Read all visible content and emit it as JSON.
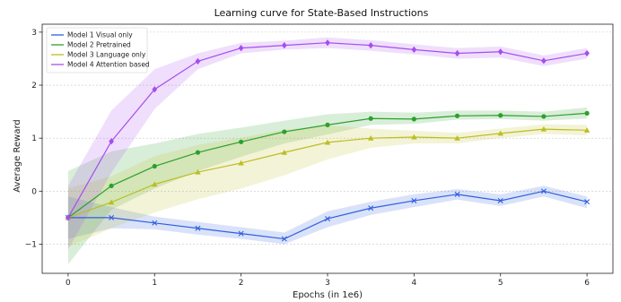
{
  "chart_data": {
    "type": "line",
    "title": "Learning curve for State-Based Instructions",
    "xlabel": "Epochs (in 1e6)",
    "ylabel": "Average Reward",
    "xlim": [
      -0.3,
      6.3
    ],
    "ylim": [
      -1.55,
      3.15
    ],
    "xticks": [
      0,
      1,
      2,
      3,
      4,
      5,
      6
    ],
    "yticks": [
      -1,
      0,
      1,
      2,
      3
    ],
    "grid": "horizontal-dashed",
    "legend_position": "top-left",
    "x": [
      0,
      0.5,
      1,
      1.5,
      2,
      2.5,
      3,
      3.5,
      4,
      4.5,
      5,
      5.5,
      6
    ],
    "series": [
      {
        "name": "Model 1 Visual only",
        "color": "#2f5fe0",
        "marker": "x",
        "values": [
          -0.5,
          -0.5,
          -0.6,
          -0.7,
          -0.8,
          -0.9,
          -0.52,
          -0.32,
          -0.18,
          -0.06,
          -0.18,
          0.0,
          -0.2
        ],
        "lower": [
          -0.9,
          -0.7,
          -0.72,
          -0.82,
          -0.9,
          -1.0,
          -0.68,
          -0.45,
          -0.3,
          -0.16,
          -0.28,
          -0.1,
          -0.32
        ],
        "upper": [
          -0.1,
          -0.3,
          -0.48,
          -0.58,
          -0.68,
          -0.78,
          -0.38,
          -0.2,
          -0.06,
          0.04,
          -0.06,
          0.1,
          -0.1
        ]
      },
      {
        "name": "Model 2 Pretrained",
        "color": "#2ca02c",
        "marker": "circle",
        "values": [
          -0.5,
          0.1,
          0.47,
          0.73,
          0.93,
          1.12,
          1.25,
          1.37,
          1.36,
          1.42,
          1.43,
          1.41,
          1.47
        ],
        "lower": [
          -1.38,
          -0.35,
          0.05,
          0.38,
          0.65,
          0.9,
          1.07,
          1.25,
          1.27,
          1.35,
          1.36,
          1.33,
          1.37
        ],
        "upper": [
          0.38,
          0.75,
          0.9,
          1.08,
          1.2,
          1.33,
          1.45,
          1.5,
          1.48,
          1.52,
          1.52,
          1.5,
          1.58
        ]
      },
      {
        "name": "Model 3 Language only",
        "color": "#bcbd22",
        "marker": "triangle",
        "values": [
          -0.5,
          -0.21,
          0.13,
          0.36,
          0.53,
          0.73,
          0.92,
          1.0,
          1.02,
          1.0,
          1.09,
          1.17,
          1.15
        ],
        "lower": [
          -1.05,
          -0.7,
          -0.4,
          -0.15,
          0.05,
          0.3,
          0.6,
          0.82,
          0.9,
          0.9,
          1.0,
          1.08,
          1.05
        ],
        "upper": [
          0.05,
          0.28,
          0.66,
          0.87,
          1.01,
          1.16,
          1.24,
          1.18,
          1.14,
          1.1,
          1.18,
          1.26,
          1.25
        ]
      },
      {
        "name": "Model 4 Attention based",
        "color": "#a64df0",
        "marker": "diamond",
        "values": [
          -0.5,
          0.94,
          1.92,
          2.45,
          2.7,
          2.75,
          2.8,
          2.75,
          2.67,
          2.6,
          2.63,
          2.46,
          2.6
        ],
        "lower": [
          -1.1,
          0.35,
          1.55,
          2.3,
          2.6,
          2.67,
          2.7,
          2.65,
          2.58,
          2.5,
          2.52,
          2.36,
          2.5
        ],
        "upper": [
          0.1,
          1.52,
          2.3,
          2.6,
          2.8,
          2.84,
          2.9,
          2.85,
          2.77,
          2.7,
          2.73,
          2.56,
          2.7
        ]
      }
    ]
  }
}
